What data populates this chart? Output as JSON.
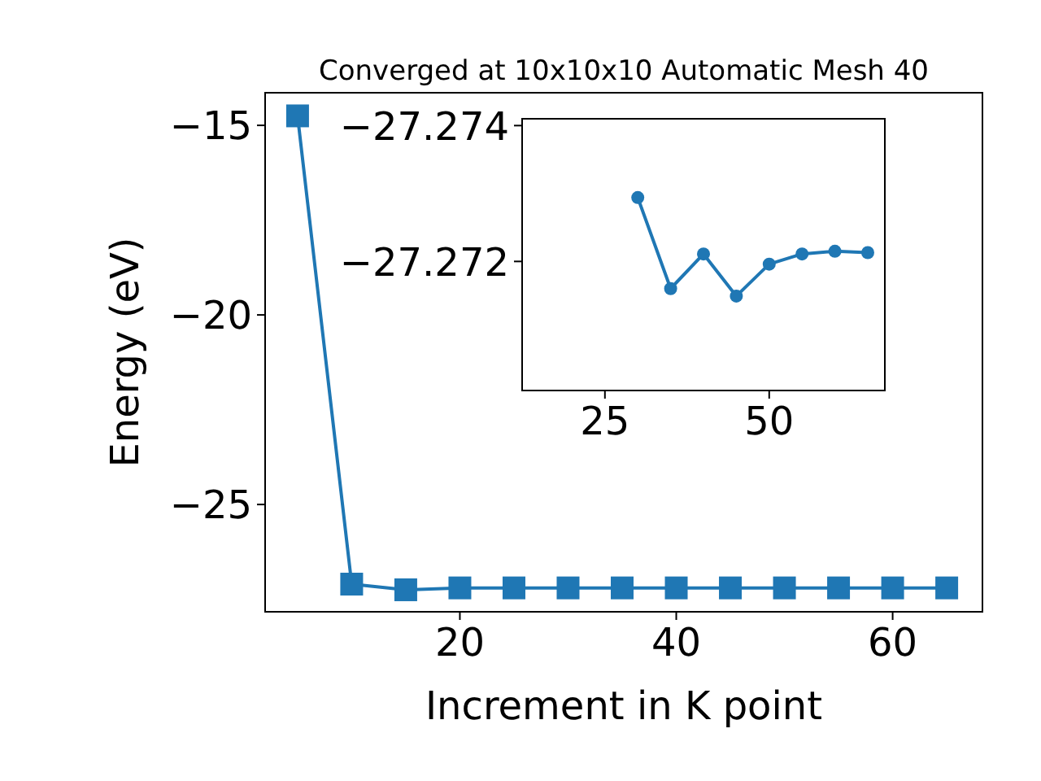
{
  "chart_data": [
    {
      "type": "line",
      "title": "Converged at 10x10x10 Automatic Mesh 40",
      "xlabel": "Increment in K point",
      "ylabel": "Energy (eV)",
      "x": [
        5,
        10,
        15,
        20,
        25,
        30,
        35,
        40,
        45,
        50,
        55,
        60,
        65
      ],
      "series": [
        {
          "color": "#1f77b4",
          "values": [
            -14.75,
            -27.1,
            -27.25,
            -27.2,
            -27.2,
            -27.2,
            -27.2,
            -27.2,
            -27.2,
            -27.2,
            -27.2,
            -27.2,
            -27.2
          ]
        }
      ],
      "marker": "square",
      "xlim": [
        2,
        68.3
      ],
      "ylim": [
        -27.83,
        -14.14
      ],
      "xticks": [
        20,
        40,
        60
      ],
      "yticks": [
        {
          "value": -15,
          "label": "−15"
        },
        {
          "value": -20,
          "label": "−20"
        },
        {
          "value": -25,
          "label": "−25"
        }
      ],
      "grid": false
    },
    {
      "type": "line",
      "x": [
        30,
        35,
        40,
        45,
        50,
        55,
        60,
        65
      ],
      "series": [
        {
          "color": "#1f77b4",
          "values": [
            -27.27294,
            -27.2716,
            -27.27211,
            -27.27149,
            -27.27196,
            -27.27211,
            -27.27215,
            -27.27213
          ]
        }
      ],
      "marker": "circle",
      "xlim": [
        12.4,
        67.6
      ],
      "ylim": [
        -27.2701,
        -27.2741
      ],
      "xticks": [
        25,
        50
      ],
      "yticks": [
        {
          "value": -27.274,
          "label": "−27.274"
        },
        {
          "value": -27.272,
          "label": "−27.272"
        }
      ],
      "grid": false
    }
  ]
}
